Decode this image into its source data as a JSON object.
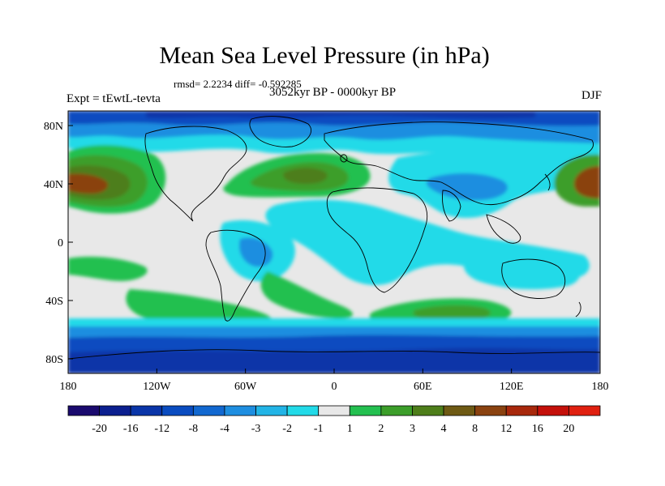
{
  "title": "Mean Sea Level Pressure (in hPa)",
  "stats_line": "rmsd= 2.2234 diff= -0.592285",
  "period_line": "3052kyr BP - 0000kyr BP",
  "experiment_label": "Expt = tEwtL-tevta",
  "season_label": "DJF",
  "lat_labels": [
    "80N",
    "40N",
    "0",
    "40S",
    "80S"
  ],
  "lon_labels": [
    "180",
    "120W",
    "60W",
    "0",
    "60E",
    "120E",
    "180"
  ],
  "legend": {
    "tick_labels": [
      "-20",
      "-16",
      "-12",
      "-8",
      "-4",
      "-3",
      "-2",
      "-1",
      "1",
      "2",
      "3",
      "4",
      "8",
      "12",
      "16",
      "20"
    ],
    "colors": [
      "#1a0a6e",
      "#0b1f8f",
      "#0a35a8",
      "#0a4cc0",
      "#1268d0",
      "#1e8ee0",
      "#22b4e6",
      "#22dae8",
      "#e8e8e8",
      "#24c050",
      "#3c9e2a",
      "#4e7e1a",
      "#6e5a14",
      "#8a4210",
      "#a8280c",
      "#c4100a",
      "#e02010"
    ]
  }
}
